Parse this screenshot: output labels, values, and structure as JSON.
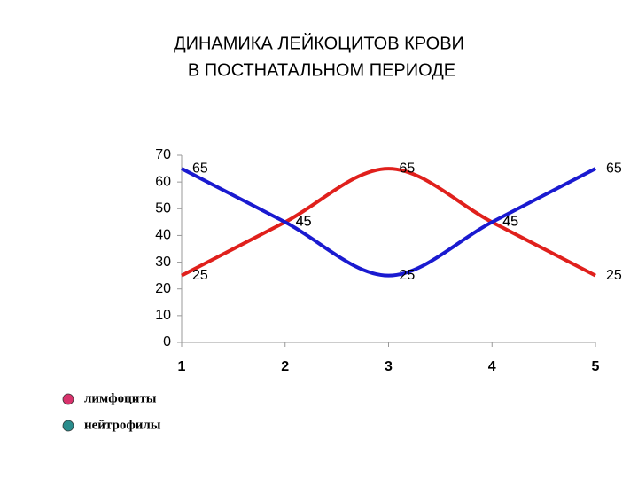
{
  "chart_data": {
    "type": "line",
    "title": [
      "ДИНАМИКА ЛЕЙКОЦИТОВ КРОВИ",
      "В ПОСТНАТАЛЬНОМ ПЕРИОДЕ"
    ],
    "x": [
      1,
      2,
      3,
      4,
      5
    ],
    "xlim": [
      1,
      5
    ],
    "xticks": [
      1,
      2,
      3,
      4,
      5
    ],
    "ylim": [
      0,
      70
    ],
    "yticks": [
      0,
      10,
      20,
      30,
      40,
      50,
      60,
      70
    ],
    "smooth": true,
    "series": [
      {
        "name": "лимфоциты",
        "color": "#e0201c",
        "legend_color": "#d8326c",
        "values": [
          25,
          45,
          65,
          45,
          25
        ]
      },
      {
        "name": "нейтрофилы",
        "color": "#1a1ad0",
        "legend_color": "#2a8c8c",
        "values": [
          65,
          45,
          25,
          45,
          65
        ]
      }
    ]
  }
}
